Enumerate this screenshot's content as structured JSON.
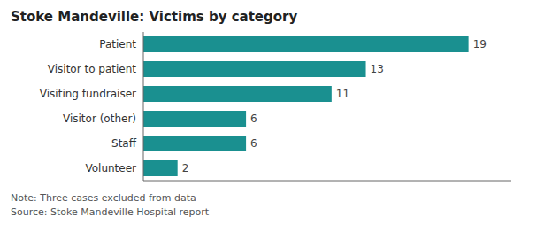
{
  "chart_data": {
    "type": "bar",
    "orientation": "horizontal",
    "title": "Stoke Mandeville: Victims by category",
    "categories": [
      "Patient",
      "Visitor to patient",
      "Visiting fundraiser",
      "Visitor (other)",
      "Staff",
      "Volunteer"
    ],
    "values": [
      19,
      13,
      11,
      6,
      6,
      2
    ],
    "color": "#1a9090",
    "xlim": [
      0,
      21.5
    ],
    "data_labels": true,
    "tick_labels": "y",
    "grid": false,
    "annotations": [
      "Note: Three cases excluded from data",
      "Source: Stoke Mandeville Hospital report"
    ]
  }
}
